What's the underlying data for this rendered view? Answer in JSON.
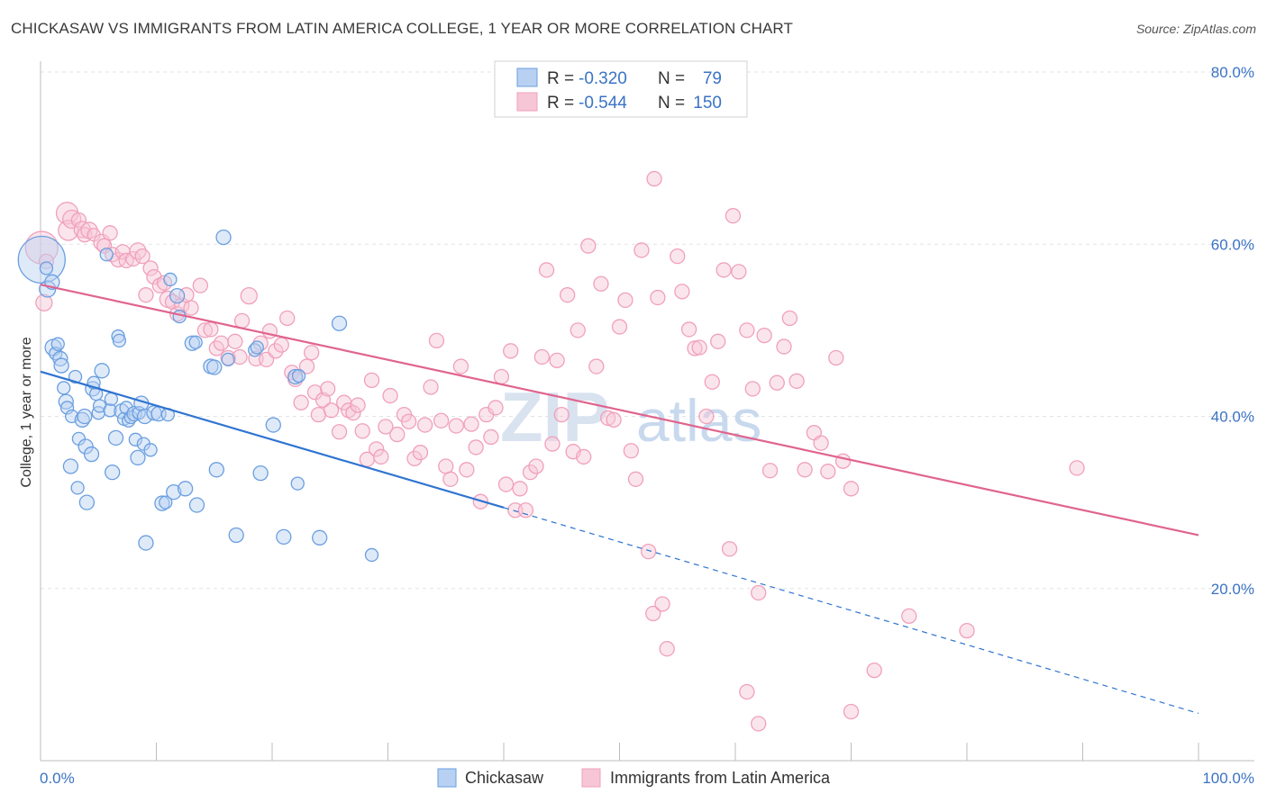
{
  "title": "CHICKASAW VS IMMIGRANTS FROM LATIN AMERICA COLLEGE, 1 YEAR OR MORE CORRELATION CHART",
  "source": "Source: ZipAtlas.com",
  "watermark": {
    "zip": "ZIP",
    "atlas": "atlas"
  },
  "legend": {
    "r_label": "R =",
    "n_label": "N =",
    "items": [
      {
        "r": "-0.320",
        "n": "79"
      },
      {
        "r": "-0.544",
        "n": "150"
      }
    ]
  },
  "colors": {
    "series1": "#6a9fe0",
    "series1_fill": "#b8d1f2",
    "series1_line": "#2f74d0",
    "series2": "#f0a0bb",
    "series2_fill": "#f7c6d6",
    "series2_line": "#e0648e",
    "tick_text": "#3b73c4",
    "grid": "#e3e3e3"
  },
  "chart_data": {
    "type": "scatter",
    "title": "CHICKASAW VS IMMIGRANTS FROM LATIN AMERICA COLLEGE, 1 YEAR OR MORE CORRELATION CHART",
    "xlabel": "",
    "ylabel": "College, 1 year or more",
    "xlim": [
      0,
      100
    ],
    "ylim": [
      0,
      80
    ],
    "x_tick_labels": [
      "0.0%",
      "100.0%"
    ],
    "y_ticks": [
      20,
      40,
      60,
      80
    ],
    "y_tick_labels": [
      "20.0%",
      "40.0%",
      "60.0%",
      "80.0%"
    ],
    "grid": true,
    "legend_position": "bottom",
    "series": [
      {
        "name": "Chickasaw",
        "r": -0.32,
        "n": 79,
        "trend": {
          "x0": 0,
          "y0": 45.2,
          "x1": 40,
          "y1": 29.4,
          "dash_to_x": 100,
          "dash_to_y": 5.5
        },
        "points": [
          [
            0.1,
            58.2,
            26
          ],
          [
            0.5,
            57.2,
            7
          ],
          [
            0.6,
            54.8,
            9
          ],
          [
            1.0,
            55.6,
            8
          ],
          [
            1.1,
            48.0,
            9
          ],
          [
            1.3,
            47.3,
            7
          ],
          [
            1.5,
            48.4,
            7
          ],
          [
            1.7,
            46.7,
            8
          ],
          [
            1.8,
            45.9,
            8
          ],
          [
            2.0,
            43.3,
            7
          ],
          [
            2.2,
            41.7,
            8
          ],
          [
            2.3,
            41.0,
            7
          ],
          [
            2.6,
            34.2,
            8
          ],
          [
            2.7,
            40.0,
            7
          ],
          [
            3.0,
            44.6,
            7
          ],
          [
            3.2,
            31.7,
            7
          ],
          [
            3.3,
            37.4,
            7
          ],
          [
            3.6,
            39.6,
            8
          ],
          [
            3.8,
            40.0,
            8
          ],
          [
            3.9,
            36.5,
            8
          ],
          [
            4.0,
            30.0,
            8
          ],
          [
            4.4,
            35.6,
            8
          ],
          [
            4.5,
            43.2,
            8
          ],
          [
            4.6,
            43.9,
            7
          ],
          [
            4.8,
            42.6,
            7
          ],
          [
            5.0,
            40.4,
            7
          ],
          [
            5.1,
            41.2,
            7
          ],
          [
            5.3,
            45.3,
            8
          ],
          [
            5.7,
            58.8,
            7
          ],
          [
            6.0,
            40.7,
            7
          ],
          [
            6.1,
            42.0,
            7
          ],
          [
            6.2,
            33.5,
            8
          ],
          [
            6.5,
            37.5,
            8
          ],
          [
            6.7,
            49.3,
            7
          ],
          [
            6.8,
            48.8,
            7
          ],
          [
            7.0,
            40.6,
            8
          ],
          [
            7.2,
            39.7,
            7
          ],
          [
            7.4,
            41.0,
            7
          ],
          [
            7.6,
            39.5,
            7
          ],
          [
            7.8,
            39.9,
            7
          ],
          [
            8.1,
            40.3,
            8
          ],
          [
            8.2,
            37.3,
            7
          ],
          [
            8.4,
            35.2,
            8
          ],
          [
            8.5,
            40.4,
            7
          ],
          [
            8.7,
            41.5,
            8
          ],
          [
            8.9,
            36.8,
            7
          ],
          [
            9.0,
            40.0,
            8
          ],
          [
            9.1,
            25.3,
            8
          ],
          [
            9.5,
            36.1,
            7
          ],
          [
            9.8,
            40.4,
            8
          ],
          [
            10.2,
            40.3,
            8
          ],
          [
            10.5,
            29.9,
            8
          ],
          [
            10.8,
            30.0,
            7
          ],
          [
            11.0,
            40.2,
            7
          ],
          [
            11.2,
            55.9,
            7
          ],
          [
            11.5,
            31.2,
            8
          ],
          [
            11.8,
            54.0,
            8
          ],
          [
            12.0,
            51.6,
            7
          ],
          [
            12.5,
            31.6,
            8
          ],
          [
            13.1,
            48.5,
            8
          ],
          [
            13.4,
            48.6,
            7
          ],
          [
            13.5,
            29.7,
            8
          ],
          [
            14.7,
            45.8,
            8
          ],
          [
            15.0,
            45.7,
            8
          ],
          [
            15.2,
            33.8,
            8
          ],
          [
            15.8,
            60.8,
            8
          ],
          [
            16.2,
            46.6,
            7
          ],
          [
            16.9,
            26.2,
            8
          ],
          [
            18.5,
            47.7,
            7
          ],
          [
            18.7,
            48.0,
            7
          ],
          [
            19.0,
            33.4,
            8
          ],
          [
            20.1,
            39.0,
            8
          ],
          [
            21.0,
            26.0,
            8
          ],
          [
            22.0,
            44.6,
            8
          ],
          [
            22.2,
            32.2,
            7
          ],
          [
            22.3,
            44.7,
            7
          ],
          [
            24.1,
            25.9,
            8
          ],
          [
            25.8,
            50.8,
            8
          ],
          [
            28.6,
            23.9,
            7
          ]
        ]
      },
      {
        "name": "Immigrants from Latin America",
        "r": -0.544,
        "n": 150,
        "trend": {
          "x0": 0,
          "y0": 55.3,
          "x1": 100,
          "y1": 26.2
        },
        "points": [
          [
            0.1,
            59.6,
            18
          ],
          [
            0.3,
            53.2,
            9
          ],
          [
            0.5,
            58.0,
            8
          ],
          [
            2.3,
            63.6,
            12
          ],
          [
            2.4,
            61.6,
            11
          ],
          [
            2.7,
            62.9,
            10
          ],
          [
            3.3,
            62.8,
            8
          ],
          [
            3.6,
            61.7,
            9
          ],
          [
            3.8,
            61.1,
            8
          ],
          [
            4.2,
            61.6,
            9
          ],
          [
            4.6,
            61.1,
            7
          ],
          [
            5.3,
            60.2,
            9
          ],
          [
            5.5,
            59.8,
            8
          ],
          [
            6.0,
            61.3,
            8
          ],
          [
            6.2,
            58.8,
            8
          ],
          [
            6.7,
            58.2,
            8
          ],
          [
            7.1,
            59.1,
            8
          ],
          [
            7.4,
            58.1,
            8
          ],
          [
            8.0,
            58.3,
            8
          ],
          [
            8.4,
            59.2,
            9
          ],
          [
            8.8,
            58.6,
            8
          ],
          [
            9.1,
            54.1,
            8
          ],
          [
            9.5,
            57.2,
            8
          ],
          [
            9.8,
            56.2,
            8
          ],
          [
            10.3,
            55.2,
            8
          ],
          [
            10.7,
            55.5,
            8
          ],
          [
            11.0,
            53.6,
            9
          ],
          [
            11.4,
            53.3,
            8
          ],
          [
            11.8,
            51.9,
            8
          ],
          [
            12.2,
            52.9,
            8
          ],
          [
            12.6,
            54.1,
            8
          ],
          [
            13.0,
            52.6,
            8
          ],
          [
            13.8,
            55.2,
            8
          ],
          [
            14.2,
            50.0,
            8
          ],
          [
            14.7,
            50.1,
            8
          ],
          [
            15.2,
            47.9,
            8
          ],
          [
            15.6,
            48.5,
            8
          ],
          [
            16.2,
            46.8,
            8
          ],
          [
            16.8,
            48.7,
            8
          ],
          [
            17.2,
            46.9,
            8
          ],
          [
            17.4,
            51.1,
            8
          ],
          [
            18.0,
            54.0,
            9
          ],
          [
            18.6,
            46.7,
            8
          ],
          [
            19.0,
            48.5,
            8
          ],
          [
            19.5,
            46.6,
            8
          ],
          [
            19.8,
            49.9,
            8
          ],
          [
            20.3,
            47.6,
            8
          ],
          [
            20.8,
            48.3,
            8
          ],
          [
            21.3,
            51.4,
            8
          ],
          [
            21.7,
            45.1,
            8
          ],
          [
            22.0,
            44.3,
            8
          ],
          [
            22.5,
            41.6,
            8
          ],
          [
            23.0,
            45.8,
            8
          ],
          [
            23.4,
            47.4,
            8
          ],
          [
            23.7,
            42.8,
            8
          ],
          [
            24.0,
            40.2,
            8
          ],
          [
            24.4,
            41.9,
            8
          ],
          [
            24.8,
            43.2,
            8
          ],
          [
            25.1,
            40.7,
            8
          ],
          [
            25.8,
            38.2,
            8
          ],
          [
            26.2,
            41.6,
            8
          ],
          [
            26.6,
            40.7,
            8
          ],
          [
            27.0,
            40.4,
            8
          ],
          [
            27.4,
            41.3,
            8
          ],
          [
            27.8,
            38.3,
            8
          ],
          [
            28.2,
            35.0,
            8
          ],
          [
            28.6,
            44.2,
            8
          ],
          [
            29.0,
            36.2,
            8
          ],
          [
            29.4,
            35.3,
            8
          ],
          [
            29.8,
            38.8,
            8
          ],
          [
            30.2,
            42.4,
            8
          ],
          [
            30.8,
            37.9,
            8
          ],
          [
            31.4,
            40.2,
            8
          ],
          [
            31.8,
            39.4,
            8
          ],
          [
            32.3,
            35.1,
            8
          ],
          [
            32.8,
            35.8,
            8
          ],
          [
            33.2,
            39.0,
            8
          ],
          [
            33.7,
            43.4,
            8
          ],
          [
            34.2,
            48.8,
            8
          ],
          [
            34.6,
            39.5,
            8
          ],
          [
            35.0,
            34.2,
            8
          ],
          [
            35.4,
            32.7,
            8
          ],
          [
            35.9,
            38.9,
            8
          ],
          [
            36.3,
            45.8,
            8
          ],
          [
            36.8,
            33.8,
            8
          ],
          [
            37.2,
            39.1,
            8
          ],
          [
            37.6,
            36.4,
            8
          ],
          [
            38.0,
            30.1,
            8
          ],
          [
            38.5,
            40.2,
            8
          ],
          [
            38.9,
            37.6,
            8
          ],
          [
            39.3,
            41.0,
            8
          ],
          [
            39.8,
            44.6,
            8
          ],
          [
            40.2,
            32.1,
            8
          ],
          [
            40.6,
            47.6,
            8
          ],
          [
            41.0,
            29.1,
            8
          ],
          [
            41.4,
            31.6,
            8
          ],
          [
            41.9,
            29.1,
            8
          ],
          [
            42.3,
            33.5,
            8
          ],
          [
            42.8,
            34.2,
            8
          ],
          [
            43.3,
            46.9,
            8
          ],
          [
            43.7,
            57.0,
            8
          ],
          [
            44.2,
            36.8,
            8
          ],
          [
            44.6,
            46.5,
            8
          ],
          [
            45.0,
            40.2,
            8
          ],
          [
            45.5,
            54.1,
            8
          ],
          [
            46.0,
            35.9,
            8
          ],
          [
            46.4,
            50.0,
            8
          ],
          [
            46.9,
            35.3,
            8
          ],
          [
            47.3,
            59.8,
            8
          ],
          [
            48.0,
            45.8,
            8
          ],
          [
            48.4,
            55.4,
            8
          ],
          [
            49.0,
            39.8,
            8
          ],
          [
            49.5,
            39.6,
            8
          ],
          [
            50.0,
            50.4,
            8
          ],
          [
            50.5,
            53.5,
            8
          ],
          [
            51.0,
            36.0,
            8
          ],
          [
            51.4,
            32.7,
            8
          ],
          [
            51.9,
            59.3,
            8
          ],
          [
            52.5,
            24.3,
            8
          ],
          [
            52.9,
            17.1,
            8
          ],
          [
            53.3,
            53.8,
            8
          ],
          [
            53.7,
            18.2,
            8
          ],
          [
            54.1,
            13.0,
            8
          ],
          [
            55.0,
            58.6,
            8
          ],
          [
            55.4,
            54.5,
            8
          ],
          [
            56.0,
            50.1,
            8
          ],
          [
            56.5,
            47.9,
            8
          ],
          [
            56.9,
            48.0,
            8
          ],
          [
            57.5,
            40.0,
            8
          ],
          [
            58.0,
            44.0,
            8
          ],
          [
            58.5,
            48.7,
            8
          ],
          [
            59.0,
            57.0,
            8
          ],
          [
            59.5,
            24.6,
            8
          ],
          [
            59.8,
            63.3,
            8
          ],
          [
            60.3,
            56.8,
            8
          ],
          [
            61.0,
            50.0,
            8
          ],
          [
            61.5,
            43.2,
            8
          ],
          [
            62.0,
            19.5,
            8
          ],
          [
            62.5,
            49.4,
            8
          ],
          [
            63.0,
            33.7,
            8
          ],
          [
            63.6,
            43.9,
            8
          ],
          [
            64.2,
            48.1,
            8
          ],
          [
            64.7,
            51.4,
            8
          ],
          [
            65.3,
            44.1,
            8
          ],
          [
            66.0,
            33.8,
            8
          ],
          [
            66.8,
            38.1,
            8
          ],
          [
            67.4,
            36.9,
            8
          ],
          [
            68.0,
            33.6,
            8
          ],
          [
            68.7,
            46.8,
            8
          ],
          [
            69.3,
            34.8,
            8
          ],
          [
            70.0,
            31.6,
            8
          ],
          [
            72.0,
            10.5,
            8
          ],
          [
            75.0,
            16.8,
            8
          ],
          [
            80.0,
            15.1,
            8
          ],
          [
            89.5,
            34.0,
            8
          ],
          [
            62.0,
            4.3,
            8
          ],
          [
            61.0,
            8.0,
            8
          ],
          [
            70.0,
            5.7,
            8
          ],
          [
            53.0,
            67.6,
            8
          ]
        ]
      }
    ]
  },
  "bottom_legend": [
    "Chickasaw",
    "Immigrants from Latin America"
  ]
}
